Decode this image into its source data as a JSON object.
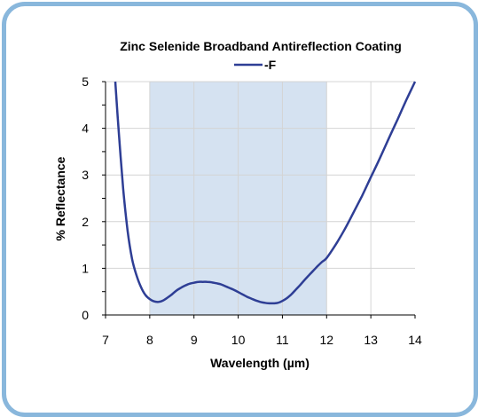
{
  "chart_data": {
    "type": "line",
    "title": "Zinc Selenide Broadband Antireflection Coating",
    "xlabel": "Wavelength (µm)",
    "ylabel": "% Reflectance",
    "xlim": [
      7,
      14
    ],
    "ylim": [
      0,
      5
    ],
    "xticks": [
      "7",
      "8",
      "9",
      "10",
      "11",
      "12",
      "13",
      "14"
    ],
    "yticks": [
      "0",
      "1",
      "2",
      "3",
      "4",
      "5"
    ],
    "grid": true,
    "legend": "top-center",
    "highlight_band": [
      8,
      12
    ],
    "colors": {
      "line": "#2e3e95",
      "band": "#d5e2f1",
      "frame": "#89b7dc"
    },
    "series": [
      {
        "name": "-F",
        "points": [
          [
            7.22,
            5.0
          ],
          [
            7.3,
            3.9
          ],
          [
            7.4,
            2.7
          ],
          [
            7.5,
            1.8
          ],
          [
            7.6,
            1.2
          ],
          [
            7.7,
            0.85
          ],
          [
            7.8,
            0.6
          ],
          [
            7.9,
            0.43
          ],
          [
            8.0,
            0.34
          ],
          [
            8.1,
            0.29
          ],
          [
            8.2,
            0.28
          ],
          [
            8.3,
            0.31
          ],
          [
            8.4,
            0.37
          ],
          [
            8.5,
            0.44
          ],
          [
            8.6,
            0.52
          ],
          [
            8.7,
            0.58
          ],
          [
            8.8,
            0.63
          ],
          [
            8.9,
            0.67
          ],
          [
            9.0,
            0.69
          ],
          [
            9.1,
            0.71
          ],
          [
            9.2,
            0.71
          ],
          [
            9.3,
            0.71
          ],
          [
            9.4,
            0.7
          ],
          [
            9.5,
            0.68
          ],
          [
            9.6,
            0.66
          ],
          [
            9.7,
            0.62
          ],
          [
            9.8,
            0.58
          ],
          [
            9.9,
            0.54
          ],
          [
            10.0,
            0.49
          ],
          [
            10.1,
            0.44
          ],
          [
            10.2,
            0.39
          ],
          [
            10.3,
            0.35
          ],
          [
            10.4,
            0.31
          ],
          [
            10.5,
            0.28
          ],
          [
            10.6,
            0.26
          ],
          [
            10.7,
            0.25
          ],
          [
            10.8,
            0.25
          ],
          [
            10.9,
            0.26
          ],
          [
            11.0,
            0.3
          ],
          [
            11.1,
            0.36
          ],
          [
            11.2,
            0.44
          ],
          [
            11.3,
            0.54
          ],
          [
            11.4,
            0.64
          ],
          [
            11.5,
            0.75
          ],
          [
            11.6,
            0.85
          ],
          [
            11.7,
            0.95
          ],
          [
            11.8,
            1.05
          ],
          [
            11.9,
            1.14
          ],
          [
            12.0,
            1.22
          ],
          [
            12.2,
            1.5
          ],
          [
            12.4,
            1.82
          ],
          [
            12.6,
            2.18
          ],
          [
            12.8,
            2.55
          ],
          [
            13.0,
            2.95
          ],
          [
            13.2,
            3.35
          ],
          [
            13.4,
            3.77
          ],
          [
            13.6,
            4.18
          ],
          [
            13.8,
            4.6
          ],
          [
            14.0,
            5.0
          ]
        ]
      }
    ]
  }
}
